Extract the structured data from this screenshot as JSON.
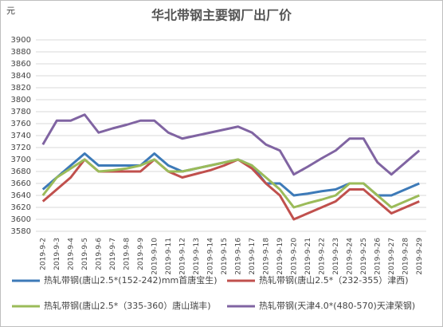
{
  "chart_data": {
    "type": "line",
    "title": "华北带钢主要钢厂出厂价",
    "y_unit_label": "元",
    "categories": [
      "2019-9-2",
      "2019-9-3",
      "2019-9-4",
      "2019-9-5",
      "2019-9-6",
      "2019-9-7",
      "2019-9-8",
      "2019-9-9",
      "2019-9-10",
      "2019-9-11",
      "2019-9-12",
      "2019-9-13",
      "2019-9-14",
      "2019-9-15",
      "2019-9-16",
      "2019-9-17",
      "2019-9-18",
      "2019-9-19",
      "2019-9-20",
      "2019-9-21",
      "2019-9-22",
      "2019-9-23",
      "2019-9-24",
      "2019-9-25",
      "2019-9-26",
      "2019-9-27",
      "2019-9-28",
      "2019-9-29"
    ],
    "series": [
      {
        "name": "热轧带钢(唐山2.5*(152-242)mm首唐宝生)",
        "color": "#3d7ab8",
        "values": [
          3650,
          3670,
          3690,
          3710,
          3690,
          3690,
          3690,
          3690,
          3710,
          3690,
          3680,
          3685,
          3690,
          3695,
          3700,
          3690,
          3660,
          3660,
          3640,
          3643,
          3647,
          3650,
          3660,
          3660,
          3640,
          3640,
          3650,
          3660
        ]
      },
      {
        "name": "热轧带钢(唐山2.5*（232-355）津西)",
        "color": "#c0504d",
        "values": [
          3630,
          3650,
          3670,
          3700,
          3680,
          3680,
          3680,
          3680,
          3700,
          3680,
          3670,
          3676,
          3682,
          3690,
          3700,
          3685,
          3660,
          3640,
          3600,
          3610,
          3620,
          3630,
          3650,
          3650,
          3630,
          3610,
          3620,
          3630
        ]
      },
      {
        "name": "热轧带钢(唐山2.5*（335-360）唐山瑞丰)",
        "color": "#9bbb59",
        "values": [
          3640,
          3670,
          3685,
          3700,
          3680,
          3682,
          3685,
          3690,
          3700,
          3680,
          3680,
          3685,
          3690,
          3695,
          3700,
          3690,
          3670,
          3650,
          3620,
          3627,
          3633,
          3640,
          3660,
          3660,
          3640,
          3620,
          3630,
          3640
        ]
      },
      {
        "name": "热轧带钢(天津4.0*(480-570)天津荣钢)",
        "color": "#8064a2",
        "values": [
          3725,
          3765,
          3765,
          3775,
          3745,
          3752,
          3758,
          3765,
          3765,
          3745,
          3735,
          3740,
          3745,
          3750,
          3755,
          3745,
          3725,
          3715,
          3675,
          3688,
          3702,
          3715,
          3735,
          3735,
          3695,
          3675,
          3695,
          3715
        ]
      }
    ],
    "ylim": [
      3580,
      3900
    ],
    "yticks": [
      3580,
      3600,
      3620,
      3640,
      3660,
      3680,
      3700,
      3720,
      3740,
      3760,
      3780,
      3800,
      3820,
      3840,
      3860,
      3880,
      3900
    ],
    "grid": true
  }
}
